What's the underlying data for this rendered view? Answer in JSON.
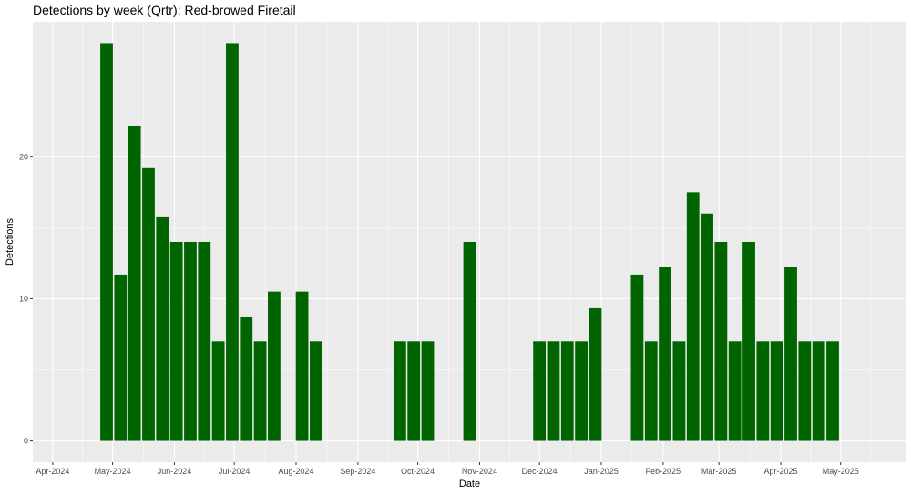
{
  "chart_data": {
    "type": "bar",
    "title": "Detections by week (Qrtr): Red-browed Firetail",
    "xlabel": "Date",
    "ylabel": "Detections",
    "xlim": [
      "2024-03-22",
      "2025-06-03"
    ],
    "ylim": [
      -1.5,
      29.5
    ],
    "y_ticks": [
      0,
      10,
      20
    ],
    "x_ticks": [
      {
        "date": "2024-04-01",
        "label": "Apr-2024"
      },
      {
        "date": "2024-05-01",
        "label": "May-2024"
      },
      {
        "date": "2024-06-01",
        "label": "Jun-2024"
      },
      {
        "date": "2024-07-01",
        "label": "Jul-2024"
      },
      {
        "date": "2024-08-01",
        "label": "Aug-2024"
      },
      {
        "date": "2024-09-01",
        "label": "Sep-2024"
      },
      {
        "date": "2024-10-01",
        "label": "Oct-2024"
      },
      {
        "date": "2024-11-01",
        "label": "Nov-2024"
      },
      {
        "date": "2024-12-01",
        "label": "Dec-2024"
      },
      {
        "date": "2025-01-01",
        "label": "Jan-2025"
      },
      {
        "date": "2025-02-01",
        "label": "Feb-2025"
      },
      {
        "date": "2025-03-01",
        "label": "Mar-2025"
      },
      {
        "date": "2025-04-01",
        "label": "Apr-2025"
      },
      {
        "date": "2025-05-01",
        "label": "May-2025"
      }
    ],
    "grid": true,
    "bar_color": "#006400",
    "panel_color": "#ebebeb",
    "grid_color": "#ffffff",
    "points": [
      {
        "week": "2024-04-28",
        "value": 28
      },
      {
        "week": "2024-05-05",
        "value": 11.7
      },
      {
        "week": "2024-05-12",
        "value": 22.2
      },
      {
        "week": "2024-05-19",
        "value": 19.2
      },
      {
        "week": "2024-05-26",
        "value": 15.8
      },
      {
        "week": "2024-06-02",
        "value": 14
      },
      {
        "week": "2024-06-09",
        "value": 14
      },
      {
        "week": "2024-06-16",
        "value": 14
      },
      {
        "week": "2024-06-23",
        "value": 7
      },
      {
        "week": "2024-06-30",
        "value": 28
      },
      {
        "week": "2024-07-07",
        "value": 8.75
      },
      {
        "week": "2024-07-14",
        "value": 7
      },
      {
        "week": "2024-07-21",
        "value": 10.5
      },
      {
        "week": "2024-08-04",
        "value": 10.5
      },
      {
        "week": "2024-08-11",
        "value": 7
      },
      {
        "week": "2024-09-22",
        "value": 7
      },
      {
        "week": "2024-09-29",
        "value": 7
      },
      {
        "week": "2024-10-06",
        "value": 7
      },
      {
        "week": "2024-10-27",
        "value": 14
      },
      {
        "week": "2024-12-01",
        "value": 7
      },
      {
        "week": "2024-12-08",
        "value": 7
      },
      {
        "week": "2024-12-15",
        "value": 7
      },
      {
        "week": "2024-12-22",
        "value": 7
      },
      {
        "week": "2024-12-29",
        "value": 9.33
      },
      {
        "week": "2025-01-19",
        "value": 11.7
      },
      {
        "week": "2025-01-26",
        "value": 7
      },
      {
        "week": "2025-02-02",
        "value": 12.25
      },
      {
        "week": "2025-02-09",
        "value": 7
      },
      {
        "week": "2025-02-16",
        "value": 17.5
      },
      {
        "week": "2025-02-23",
        "value": 16
      },
      {
        "week": "2025-03-02",
        "value": 14
      },
      {
        "week": "2025-03-09",
        "value": 7
      },
      {
        "week": "2025-03-16",
        "value": 14
      },
      {
        "week": "2025-03-23",
        "value": 7
      },
      {
        "week": "2025-03-30",
        "value": 7
      },
      {
        "week": "2025-04-06",
        "value": 12.25
      },
      {
        "week": "2025-04-13",
        "value": 7
      },
      {
        "week": "2025-04-20",
        "value": 7
      },
      {
        "week": "2025-04-27",
        "value": 7
      }
    ]
  }
}
